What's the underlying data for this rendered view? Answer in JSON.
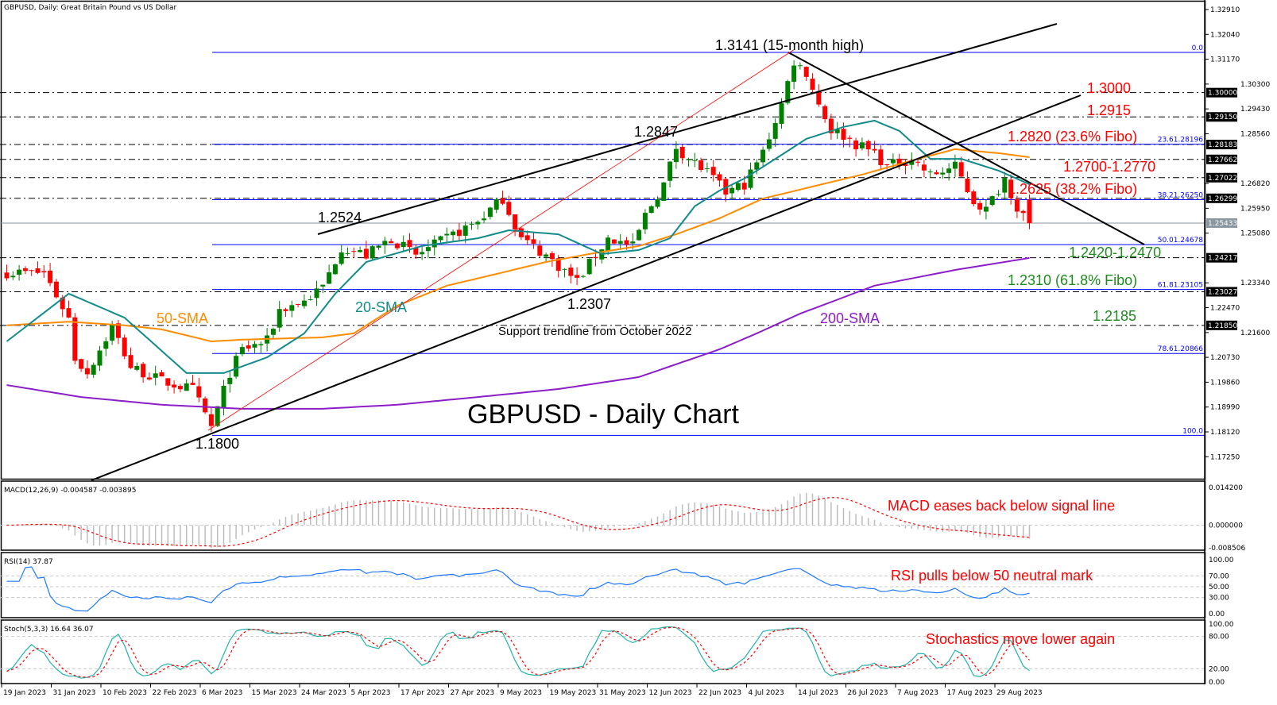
{
  "header": {
    "title": "GBPUSD, Daily:  Great Britain Pound vs US Dollar"
  },
  "colors": {
    "bull": "#008000",
    "bear": "#ff0000",
    "sma20": "#138b8b",
    "sma50": "#ff8c00",
    "sma200": "#8b1ec8",
    "fib": "#0000ff",
    "note_red": "#ff0000",
    "note_green": "#1e8c1e",
    "macd_hist": "#bdbdbd",
    "rsi": "#1e78ff",
    "stoch_k": "#20b2aa"
  },
  "chart_data": {
    "type": "candlestick",
    "title": "GBPUSD - Daily Chart",
    "bars": 166,
    "ylim": [
      1.1685,
      1.3325
    ],
    "price_ticks": [
      "1.32910",
      "1.32040",
      "1.31170",
      "1.30300",
      "1.29430",
      "1.28560",
      "1.26820",
      "1.25950",
      "1.25080",
      "1.23340",
      "1.22470",
      "1.21600",
      "1.20730",
      "1.19860",
      "1.18990",
      "1.18120",
      "1.17250"
    ],
    "level_tags": [
      {
        "label": "1.30000",
        "value": 1.3
      },
      {
        "label": "1.29150",
        "value": 1.2915
      },
      {
        "label": "1.28183",
        "value": 1.28183
      },
      {
        "label": "1.27662",
        "value": 1.27662
      },
      {
        "label": "1.27022",
        "value": 1.27022
      },
      {
        "label": "1.26299",
        "value": 1.26299
      },
      {
        "label": "1.24217",
        "value": 1.24217
      },
      {
        "label": "1.23027",
        "value": 1.23027
      },
      {
        "label": "1.21850",
        "value": 1.2185
      }
    ],
    "current_price": {
      "label": "1.25433",
      "value": 1.25433
    },
    "date_labels": [
      "19 Jan 2023",
      "31 Jan 2023",
      "10 Feb 2023",
      "22 Feb 2023",
      "6 Mar 2023",
      "15 Mar 2023",
      "24 Mar 2023",
      "5 Apr 2023",
      "17 Apr 2023",
      "27 Apr 2023",
      "9 May 2023",
      "19 May 2023",
      "31 May 2023",
      "12 Jun 2023",
      "22 Jun 2023",
      "4 Jul 2023",
      "14 Jul 2023",
      "26 Jul 2023",
      "7 Aug 2023",
      "17 Aug 2023",
      "29 Aug 2023"
    ],
    "fib_levels": [
      {
        "label": "0.0",
        "value": 1.3141
      },
      {
        "label": "23.61.28196",
        "value": 1.28196
      },
      {
        "label": "38.21.26250",
        "value": 1.2625
      },
      {
        "label": "50.01.24678",
        "value": 1.24678
      },
      {
        "label": "61.81.23105",
        "value": 1.23105
      },
      {
        "label": "78.61.20866",
        "value": 1.20866
      },
      {
        "label": "100.0",
        "value": 1.18
      }
    ],
    "close_path": [
      [
        0,
        1.237
      ],
      [
        6,
        1.237
      ],
      [
        10,
        1.221
      ],
      [
        11,
        1.207
      ],
      [
        13,
        1.202
      ],
      [
        17,
        1.218
      ],
      [
        20,
        1.204
      ],
      [
        25,
        1.199
      ],
      [
        30,
        1.196
      ],
      [
        33,
        1.183
      ],
      [
        36,
        1.202
      ],
      [
        38,
        1.21
      ],
      [
        42,
        1.213
      ],
      [
        44,
        1.224
      ],
      [
        48,
        1.227
      ],
      [
        51,
        1.232
      ],
      [
        54,
        1.246
      ],
      [
        58,
        1.243
      ],
      [
        62,
        1.249
      ],
      [
        66,
        1.243
      ],
      [
        71,
        1.249
      ],
      [
        76,
        1.255
      ],
      [
        80,
        1.263
      ],
      [
        83,
        1.249
      ],
      [
        87,
        1.243
      ],
      [
        92,
        1.234
      ],
      [
        97,
        1.249
      ],
      [
        101,
        1.246
      ],
      [
        103,
        1.257
      ],
      [
        106,
        1.268
      ],
      [
        108,
        1.281
      ],
      [
        110,
        1.277
      ],
      [
        113,
        1.272
      ],
      [
        116,
        1.265
      ],
      [
        119,
        1.268
      ],
      [
        122,
        1.279
      ],
      [
        125,
        1.296
      ],
      [
        127,
        1.311
      ],
      [
        129,
        1.307
      ],
      [
        131,
        1.296
      ],
      [
        133,
        1.287
      ],
      [
        135,
        1.285
      ],
      [
        137,
        1.282
      ],
      [
        140,
        1.279
      ],
      [
        142,
        1.274
      ],
      [
        146,
        1.277
      ],
      [
        149,
        1.271
      ],
      [
        153,
        1.274
      ],
      [
        156,
        1.262
      ],
      [
        158,
        1.259
      ],
      [
        161,
        1.27
      ],
      [
        163,
        1.26
      ],
      [
        165,
        1.25433
      ]
    ],
    "sma20": [
      [
        0,
        1.2129
      ],
      [
        10,
        1.2296
      ],
      [
        19,
        1.2212
      ],
      [
        29,
        1.2018
      ],
      [
        35,
        1.2018
      ],
      [
        42,
        1.2073
      ],
      [
        48,
        1.2157
      ],
      [
        53,
        1.2296
      ],
      [
        58,
        1.2407
      ],
      [
        67,
        1.2463
      ],
      [
        76,
        1.249
      ],
      [
        81,
        1.2518
      ],
      [
        89,
        1.2504
      ],
      [
        96,
        1.2435
      ],
      [
        102,
        1.2449
      ],
      [
        107,
        1.249
      ],
      [
        111,
        1.2602
      ],
      [
        115,
        1.2657
      ],
      [
        119,
        1.2699
      ],
      [
        124,
        1.2768
      ],
      [
        129,
        1.2838
      ],
      [
        135,
        1.288
      ],
      [
        140,
        1.2902
      ],
      [
        144,
        1.2866
      ],
      [
        149,
        1.2768
      ],
      [
        154,
        1.2768
      ],
      [
        160,
        1.2727
      ],
      [
        165,
        1.2679
      ]
    ],
    "sma50": [
      [
        0,
        1.2185
      ],
      [
        10,
        1.2198
      ],
      [
        19,
        1.2185
      ],
      [
        25,
        1.2171
      ],
      [
        33,
        1.2129
      ],
      [
        38,
        1.2135
      ],
      [
        51,
        1.2143
      ],
      [
        56,
        1.2157
      ],
      [
        63,
        1.2254
      ],
      [
        71,
        1.2324
      ],
      [
        79,
        1.2365
      ],
      [
        87,
        1.2407
      ],
      [
        94,
        1.2435
      ],
      [
        102,
        1.2463
      ],
      [
        108,
        1.2504
      ],
      [
        115,
        1.256
      ],
      [
        122,
        1.2629
      ],
      [
        130,
        1.2671
      ],
      [
        138,
        1.2713
      ],
      [
        147,
        1.2768
      ],
      [
        153,
        1.2802
      ],
      [
        160,
        1.2788
      ],
      [
        165,
        1.2774
      ]
    ],
    "sma200": [
      [
        0,
        1.1976
      ],
      [
        12,
        1.1934
      ],
      [
        25,
        1.1907
      ],
      [
        38,
        1.1893
      ],
      [
        51,
        1.1893
      ],
      [
        63,
        1.1907
      ],
      [
        76,
        1.1934
      ],
      [
        89,
        1.1962
      ],
      [
        102,
        1.2004
      ],
      [
        115,
        1.2101
      ],
      [
        121,
        1.2157
      ],
      [
        128,
        1.2226
      ],
      [
        140,
        1.2324
      ],
      [
        153,
        1.2379
      ],
      [
        165,
        1.2421
      ]
    ],
    "annotations": {
      "high": "1.3141 (15-month high)",
      "p2847": "1.2847",
      "p2524": "1.2524",
      "p2307": "1.2307",
      "p1800": "1.1800",
      "sma50": "50-SMA",
      "sma20": "20-SMA",
      "sma200": "200-SMA",
      "support": "Support trendline from October 2022",
      "r3000": "1.3000",
      "r2915": "1.2915",
      "r2820": "1.2820 (23.6% Fibo)",
      "r2700": "1.2700-1.2770",
      "r2625": "1.2625 (38.2% Fibo)",
      "s2420": "1.2420-1.2470",
      "s2310": "1.2310 (61.8% Fibo)",
      "s2185": "1.2185"
    },
    "macd": {
      "label": "MACD(12,26,9) -0.004587 -0.003895",
      "ticks": [
        "0.014200",
        "0.000000",
        "-0.008506"
      ],
      "range": [
        -0.008506,
        0.0142
      ],
      "note": "MACD eases back below signal line"
    },
    "rsi": {
      "label": "RSI(14) 37.87",
      "ticks": [
        "100.00",
        "70.00",
        "50.00",
        "30.00",
        "0.00"
      ],
      "note": "RSI pulls below 50 neutral mark"
    },
    "stoch": {
      "label": "Stoch(5,3,3) 16.64 36.07",
      "ticks": [
        "100.00",
        "80.00",
        "20.00",
        "0.00"
      ],
      "note": "Stochastics move lower again"
    }
  }
}
